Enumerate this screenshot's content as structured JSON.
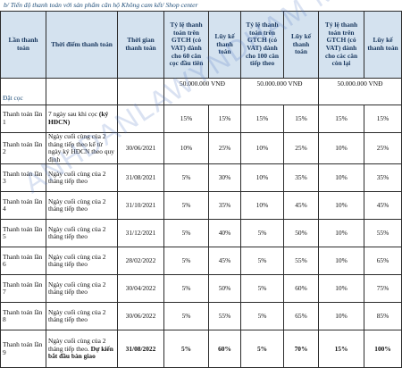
{
  "caption": "b/ Tiến độ thanh toán với sản phẩm căn hộ Không cam kết/ Shop center",
  "watermark": "ANHDANLAWYNDHAM MUINE",
  "headers": {
    "lan": "Lần thanh toán",
    "thoi_diem": "Thời điểm thanh toán",
    "thoi_gian": "Thời gian thanh toán",
    "tyle_60": "Tỷ lệ thanh toán trên GTCH (có VAT) dành cho 60 căn cọc đầu tiên",
    "luyke_1": "Lũy kế thanh toán",
    "tyle_100": "Tỷ lệ thanh toán trên GTCH (có VAT) dành cho 100 căn tiếp theo",
    "luyke_2": "Lũy kế thanh toán",
    "tyle_con": "Tỷ lệ thanh toán trên GTCH (có VAT) dành cho các căn còn lại",
    "luyke_3": "Lũy kế thanh toán"
  },
  "deposit": {
    "label": "Đặt cọc",
    "amount_60": "50.000.000 VNĐ",
    "amount_100": "50.000.000 VNĐ",
    "amount_con": "50.000.000 VNĐ"
  },
  "rows": [
    {
      "lan": "Thanh toán lần 1",
      "thoi_diem": "7 ngày sau khi cọc",
      "thoi_diem_bold": "(ký HĐCN)",
      "thoi_gian": "",
      "tyle_60": "15%",
      "luyke_1": "15%",
      "tyle_100": "15%",
      "luyke_2": "15%",
      "tyle_con": "15%",
      "luyke_3": "15%"
    },
    {
      "lan": "Thanh toán lần 2",
      "thoi_diem": "Ngày cuối cùng của 2 tháng tiếp theo kể từ ngày ký HĐCN theo quy định",
      "thoi_diem_bold": "",
      "thoi_gian": "30/06/2021",
      "tyle_60": "10%",
      "luyke_1": "25%",
      "tyle_100": "10%",
      "luyke_2": "25%",
      "tyle_con": "10%",
      "luyke_3": "25%"
    },
    {
      "lan": "Thanh toán lần 3",
      "thoi_diem": "Ngày cuối cùng của 2 tháng tiếp theo",
      "thoi_diem_bold": "",
      "thoi_gian": "31/08/2021",
      "tyle_60": "5%",
      "luyke_1": "30%",
      "tyle_100": "10%",
      "luyke_2": "35%",
      "tyle_con": "10%",
      "luyke_3": "35%"
    },
    {
      "lan": "Thanh toán lần 4",
      "thoi_diem": "Ngày cuối cùng của 2 tháng tiếp theo",
      "thoi_diem_bold": "",
      "thoi_gian": "31/10/2021",
      "tyle_60": "5%",
      "luyke_1": "35%",
      "tyle_100": "10%",
      "luyke_2": "45%",
      "tyle_con": "10%",
      "luyke_3": "45%"
    },
    {
      "lan": "Thanh toán lần 5",
      "thoi_diem": "Ngày cuối cùng của 2 tháng tiếp theo",
      "thoi_diem_bold": "",
      "thoi_gian": "31/12/2021",
      "tyle_60": "5%",
      "luyke_1": "40%",
      "tyle_100": "5%",
      "luyke_2": "50%",
      "tyle_con": "10%",
      "luyke_3": "55%"
    },
    {
      "lan": "Thanh toán lần 6",
      "thoi_diem": "Ngày cuối cùng của 2 tháng tiếp theo",
      "thoi_diem_bold": "",
      "thoi_gian": "28/02/2022",
      "tyle_60": "5%",
      "luyke_1": "45%",
      "tyle_100": "5%",
      "luyke_2": "55%",
      "tyle_con": "10%",
      "luyke_3": "65%"
    },
    {
      "lan": "Thanh toán lần 7",
      "thoi_diem": "Ngày cuối cùng của 2 tháng tiếp theo",
      "thoi_diem_bold": "",
      "thoi_gian": "30/04/2022",
      "tyle_60": "5%",
      "luyke_1": "50%",
      "tyle_100": "5%",
      "luyke_2": "60%",
      "tyle_con": "10%",
      "luyke_3": "75%"
    },
    {
      "lan": "Thanh toán lần 8",
      "thoi_diem": "Ngày cuối cùng của 2 tháng tiếp theo",
      "thoi_diem_bold": "",
      "thoi_gian": "30/06/2022",
      "tyle_60": "5%",
      "luyke_1": "55%",
      "tyle_100": "5%",
      "luyke_2": "65%",
      "tyle_con": "10%",
      "luyke_3": "85%"
    },
    {
      "lan": "Thanh toán lần 9",
      "thoi_diem": "Ngày cuối cùng của 2 tháng tiếp theo.",
      "thoi_diem_bold": "Dự kiến bắt đầu bàn giao",
      "thoi_gian": "31/08/2022",
      "tyle_60": "5%",
      "luyke_1": "60%",
      "tyle_100": "5%",
      "luyke_2": "70%",
      "tyle_con": "15%",
      "luyke_3": "100%"
    }
  ]
}
